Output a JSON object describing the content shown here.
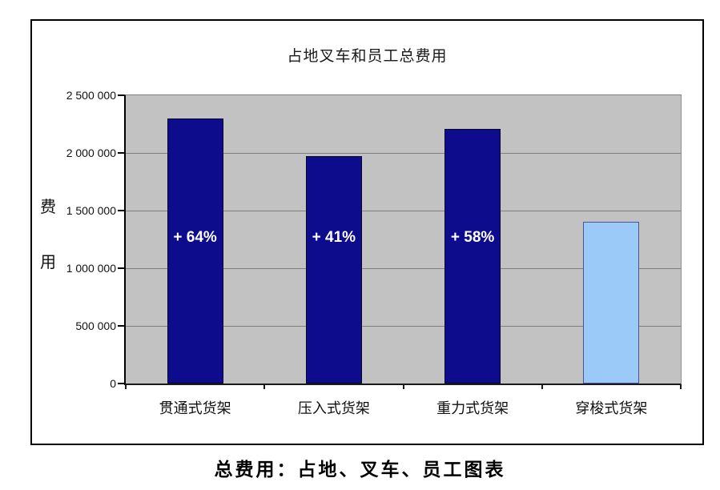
{
  "chart_data": {
    "type": "bar",
    "title": "占地叉车和员工总费用",
    "ylabel": "费用",
    "ylabel_chars": [
      "费",
      "用"
    ],
    "xlabel": "",
    "categories": [
      "贯通式货架",
      "压入式货架",
      "重力式货架",
      "穿梭式货架"
    ],
    "values": [
      2300000,
      1975000,
      2210000,
      1400000
    ],
    "bar_labels": [
      "+ 64%",
      "+ 41%",
      "+ 58%",
      ""
    ],
    "bar_colors": [
      "#0c0c8d",
      "#0c0c8d",
      "#0c0c8d",
      "#9bcaf8"
    ],
    "bar_border_colors": [
      "#06062a",
      "#06062a",
      "#06062a",
      "#47549b"
    ],
    "ylim": [
      0,
      2500000
    ],
    "ytick_interval": 500000,
    "ytick_labels": [
      "0",
      "500 000",
      "1 000 000",
      "1 500 000",
      "2 000 000",
      "2 500 000"
    ],
    "grid": true,
    "legend": "none",
    "plot_background": "#c2c2c2",
    "gridline_color": "#7f7f7f"
  },
  "caption": "总费用：占地、叉车、员工图表"
}
